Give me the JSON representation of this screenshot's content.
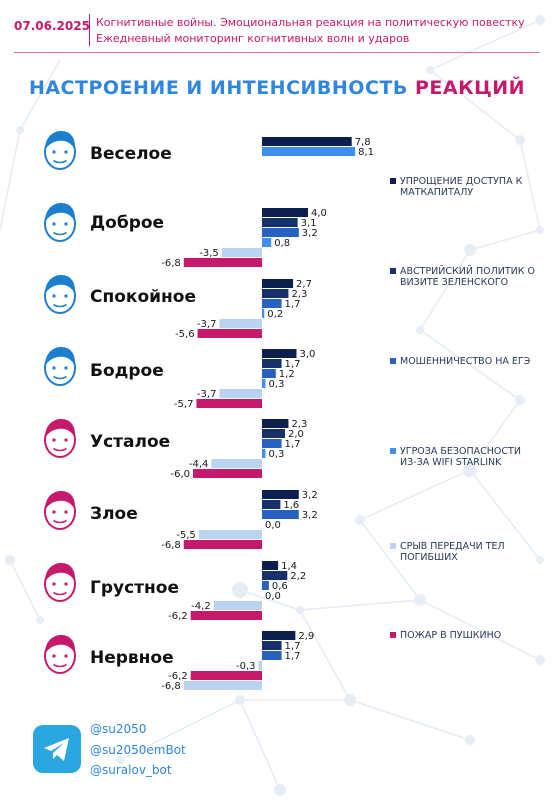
{
  "header": {
    "date": "07.06.2025",
    "line1": "Когнитивные войны. Эмоциональная реакция на политическую повестку",
    "line2": "Ежедневный мониторинг когнитивных волн и ударов"
  },
  "title": {
    "part1": "НАСТРОЕНИЕ И ИНТЕНСИВНОСТЬ ",
    "part2": "РЕАКЦИЙ"
  },
  "colors": {
    "series": [
      "#0d1f4f",
      "#16306b",
      "#2762c0",
      "#3e8ff0",
      "#b9d3f1",
      "#c51a6b"
    ],
    "header": "#c51a6b",
    "face_blue": "#1d7fd0",
    "face_red": "#c51a6b"
  },
  "chart_data": {
    "type": "bar",
    "orientation": "horizontal",
    "categories": [
      "Веселое",
      "Доброе",
      "Спокойное",
      "Бодрое",
      "Усталое",
      "Злое",
      "Грустное",
      "Нервное"
    ],
    "series": [
      {
        "name": "Упрощение доступа к маткапиталу",
        "values": [
          7.8,
          4.0,
          2.7,
          3.0,
          2.3,
          3.2,
          1.4,
          2.9
        ]
      },
      {
        "name": "Австрийский политик о визите Зеленского",
        "values": [
          null,
          3.1,
          2.3,
          1.7,
          2.0,
          1.6,
          2.2,
          1.7
        ]
      },
      {
        "name": "Мошенничество на ЕГЭ",
        "values": [
          null,
          3.2,
          1.7,
          1.2,
          1.7,
          3.2,
          0.6,
          1.7
        ]
      },
      {
        "name": "Угроза безопасности из-за WiFi Starlink",
        "values": [
          8.1,
          0.8,
          0.2,
          0.3,
          0.3,
          0.0,
          0.0,
          null
        ]
      },
      {
        "name": "Срыв передачи тел погибших",
        "values": [
          null,
          -3.5,
          -3.7,
          -3.7,
          -4.4,
          -5.5,
          -4.2,
          -0.3
        ]
      },
      {
        "name": "Пожар в Пушкино",
        "values": [
          null,
          -6.8,
          -5.6,
          -5.7,
          -6.0,
          -6.8,
          -6.2,
          -6.2
        ]
      }
    ],
    "extra_bars": [
      {
        "category": "Нервное",
        "series": "Срыв передачи тел погибших",
        "value": -6.8
      }
    ],
    "labels": [
      [
        "7,8",
        "",
        "",
        "8,1",
        "",
        ""
      ],
      [
        "4,0",
        "3,1",
        "3,2",
        "0,8",
        "-3,5",
        "-6,8"
      ],
      [
        "2,7",
        "2,3",
        "1,7",
        "0,2",
        "-3,7",
        "-5,6"
      ],
      [
        "3,0",
        "1,7",
        "1,2",
        "0,3",
        "-3,7",
        "-5,7"
      ],
      [
        "2,3",
        "2,0",
        "1,7",
        "0,3",
        "-4,4",
        "-6,0"
      ],
      [
        "3,2",
        "1,6",
        "3,2",
        "0,0",
        "-5,5",
        "-6,8"
      ],
      [
        "1,4",
        "2,2",
        "0,6",
        "0,0",
        "-4,2",
        "-6,2"
      ],
      [
        "2,9",
        "1,7",
        "1,7",
        "",
        "-0,3",
        "-6,2"
      ]
    ],
    "extra_label": "-6,8",
    "legend_placement": "right",
    "grid": false
  },
  "faces": [
    "blue",
    "blue",
    "blue",
    "blue",
    "red",
    "red",
    "red",
    "red"
  ],
  "footer": {
    "handles": [
      "@su2050",
      "@su2050emBot",
      "@suralov_bot"
    ],
    "icon": "telegram-icon"
  }
}
